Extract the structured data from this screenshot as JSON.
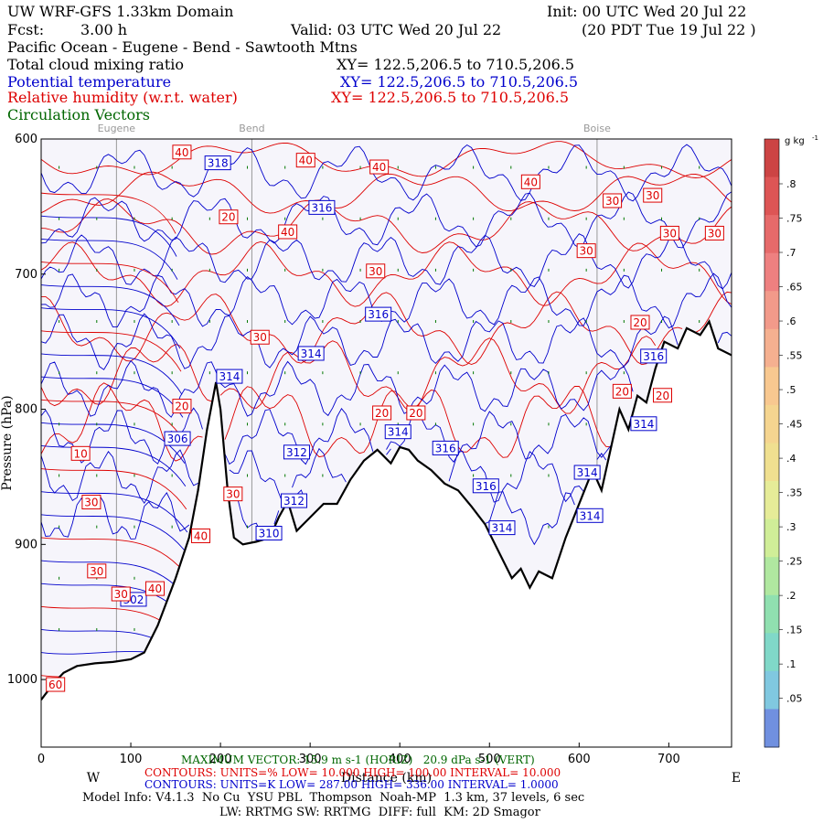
{
  "header": {
    "model_title": "UW WRF-GFS 1.33km Domain",
    "init": "Init: 00 UTC Wed 20 Jul 22",
    "fcst_label": "Fcst:",
    "fcst_value": "3.00 h",
    "valid": "Valid: 03 UTC Wed 20 Jul 22",
    "valid_local": "(20 PDT Tue 19 Jul 22 )",
    "cross_section": "Pacific Ocean - Eugene - Bend - Sawtooth Mtns",
    "field1": "Total cloud mixing ratio",
    "field1_xy": "XY= 122.5,206.5 to 710.5,206.5",
    "field2": "Potential temperature",
    "field2_xy": "XY= 122.5,206.5 to 710.5,206.5",
    "field3": "Relative humidity (w.r.t. water)",
    "field3_xy": "XY= 122.5,206.5 to 710.5,206.5",
    "field4": "Circulation Vectors"
  },
  "chart_data": {
    "type": "cross-section",
    "xlabel": "Distance (km)",
    "ylabel": "Pressure (hPa)",
    "xlim": [
      0,
      770
    ],
    "ylim_hpa": [
      1050,
      600
    ],
    "x_ticks": [
      "0",
      "100",
      "200",
      "300",
      "400",
      "500",
      "600",
      "700"
    ],
    "x_tick_values": [
      0,
      100,
      200,
      300,
      400,
      500,
      600,
      700
    ],
    "y_ticks": [
      "600",
      "700",
      "800",
      "900",
      "1000"
    ],
    "y_tick_values": [
      600,
      700,
      800,
      900,
      1000
    ],
    "locations": [
      {
        "name": "Eugene",
        "x": 84
      },
      {
        "name": "Bend",
        "x": 235
      },
      {
        "name": "Boise",
        "x": 620
      }
    ],
    "west_label": "W",
    "east_label": "E",
    "terrain": [
      {
        "x": 0,
        "p": 1015
      },
      {
        "x": 8,
        "p": 1008
      },
      {
        "x": 15,
        "p": 1002
      },
      {
        "x": 25,
        "p": 995
      },
      {
        "x": 40,
        "p": 990
      },
      {
        "x": 60,
        "p": 988
      },
      {
        "x": 80,
        "p": 987
      },
      {
        "x": 100,
        "p": 985
      },
      {
        "x": 115,
        "p": 980
      },
      {
        "x": 130,
        "p": 960
      },
      {
        "x": 150,
        "p": 925
      },
      {
        "x": 165,
        "p": 895
      },
      {
        "x": 175,
        "p": 860
      },
      {
        "x": 185,
        "p": 815
      },
      {
        "x": 195,
        "p": 780
      },
      {
        "x": 200,
        "p": 800
      },
      {
        "x": 208,
        "p": 860
      },
      {
        "x": 215,
        "p": 895
      },
      {
        "x": 225,
        "p": 900
      },
      {
        "x": 240,
        "p": 898
      },
      {
        "x": 255,
        "p": 895
      },
      {
        "x": 265,
        "p": 880
      },
      {
        "x": 275,
        "p": 868
      },
      {
        "x": 285,
        "p": 890
      },
      {
        "x": 300,
        "p": 880
      },
      {
        "x": 315,
        "p": 870
      },
      {
        "x": 330,
        "p": 870
      },
      {
        "x": 345,
        "p": 852
      },
      {
        "x": 360,
        "p": 838
      },
      {
        "x": 375,
        "p": 830
      },
      {
        "x": 390,
        "p": 840
      },
      {
        "x": 400,
        "p": 828
      },
      {
        "x": 410,
        "p": 830
      },
      {
        "x": 420,
        "p": 838
      },
      {
        "x": 435,
        "p": 845
      },
      {
        "x": 450,
        "p": 855
      },
      {
        "x": 465,
        "p": 860
      },
      {
        "x": 480,
        "p": 872
      },
      {
        "x": 495,
        "p": 885
      },
      {
        "x": 510,
        "p": 905
      },
      {
        "x": 525,
        "p": 925
      },
      {
        "x": 535,
        "p": 918
      },
      {
        "x": 545,
        "p": 932
      },
      {
        "x": 555,
        "p": 920
      },
      {
        "x": 570,
        "p": 925
      },
      {
        "x": 585,
        "p": 895
      },
      {
        "x": 600,
        "p": 870
      },
      {
        "x": 615,
        "p": 845
      },
      {
        "x": 625,
        "p": 860
      },
      {
        "x": 635,
        "p": 830
      },
      {
        "x": 645,
        "p": 800
      },
      {
        "x": 655,
        "p": 815
      },
      {
        "x": 665,
        "p": 790
      },
      {
        "x": 675,
        "p": 795
      },
      {
        "x": 685,
        "p": 770
      },
      {
        "x": 695,
        "p": 750
      },
      {
        "x": 710,
        "p": 755
      },
      {
        "x": 720,
        "p": 740
      },
      {
        "x": 735,
        "p": 745
      },
      {
        "x": 745,
        "p": 735
      },
      {
        "x": 755,
        "p": 755
      },
      {
        "x": 770,
        "p": 760
      }
    ],
    "theta_labels": [
      {
        "text": "318",
        "x": 197,
        "p": 618
      },
      {
        "text": "316",
        "x": 313,
        "p": 651
      },
      {
        "text": "316",
        "x": 376,
        "p": 730
      },
      {
        "text": "314",
        "x": 301,
        "p": 759
      },
      {
        "text": "314",
        "x": 210,
        "p": 776
      },
      {
        "text": "306",
        "x": 152,
        "p": 822
      },
      {
        "text": "314",
        "x": 398,
        "p": 817
      },
      {
        "text": "316",
        "x": 451,
        "p": 829
      },
      {
        "text": "312",
        "x": 285,
        "p": 832
      },
      {
        "text": "312",
        "x": 282,
        "p": 868
      },
      {
        "text": "316",
        "x": 496,
        "p": 857
      },
      {
        "text": "314",
        "x": 514,
        "p": 888
      },
      {
        "text": "310",
        "x": 254,
        "p": 892
      },
      {
        "text": "314",
        "x": 609,
        "p": 847
      },
      {
        "text": "314",
        "x": 612,
        "p": 879
      },
      {
        "text": "314",
        "x": 672,
        "p": 811
      },
      {
        "text": "316",
        "x": 683,
        "p": 761
      },
      {
        "text": "302",
        "x": 103,
        "p": 941
      }
    ],
    "rh_labels": [
      {
        "text": "40",
        "x": 157,
        "p": 610
      },
      {
        "text": "40",
        "x": 295,
        "p": 616
      },
      {
        "text": "40",
        "x": 377,
        "p": 621
      },
      {
        "text": "40",
        "x": 546,
        "p": 632
      },
      {
        "text": "30",
        "x": 637,
        "p": 646
      },
      {
        "text": "30",
        "x": 682,
        "p": 642
      },
      {
        "text": "20",
        "x": 209,
        "p": 658
      },
      {
        "text": "40",
        "x": 275,
        "p": 669
      },
      {
        "text": "30",
        "x": 608,
        "p": 683
      },
      {
        "text": "30",
        "x": 701,
        "p": 670
      },
      {
        "text": "30",
        "x": 751,
        "p": 670
      },
      {
        "text": "30",
        "x": 373,
        "p": 698
      },
      {
        "text": "20",
        "x": 668,
        "p": 736
      },
      {
        "text": "30",
        "x": 244,
        "p": 747
      },
      {
        "text": "20",
        "x": 648,
        "p": 787
      },
      {
        "text": "20",
        "x": 693,
        "p": 790
      },
      {
        "text": "20",
        "x": 157,
        "p": 798
      },
      {
        "text": "20",
        "x": 380,
        "p": 803
      },
      {
        "text": "20",
        "x": 418,
        "p": 803
      },
      {
        "text": "10",
        "x": 44,
        "p": 833
      },
      {
        "text": "30",
        "x": 214,
        "p": 863
      },
      {
        "text": "30",
        "x": 56,
        "p": 869
      },
      {
        "text": "40",
        "x": 178,
        "p": 894
      },
      {
        "text": "30",
        "x": 62,
        "p": 920
      },
      {
        "text": "30",
        "x": 89,
        "p": 937
      },
      {
        "text": "40",
        "x": 127,
        "p": 933
      },
      {
        "text": "60",
        "x": 16,
        "p": 1004
      }
    ],
    "colorbar": {
      "unit": "g kg",
      "unit_sup": "-1",
      "labels": [
        ".8",
        ".75",
        ".7",
        ".65",
        ".6",
        ".55",
        ".5",
        ".45",
        ".4",
        ".35",
        ".3",
        ".25",
        ".2",
        ".15",
        ".1",
        ".05"
      ],
      "colors": [
        "#cc4444",
        "#dd5555",
        "#e66a6a",
        "#ee8080",
        "#f29a8a",
        "#f5b090",
        "#f8c890",
        "#f5d590",
        "#f0e090",
        "#e6ec98",
        "#d0ee98",
        "#b0e8a0",
        "#90e0b0",
        "#80d8c8",
        "#80c8e0",
        "#7090e0"
      ]
    }
  },
  "footer": {
    "max_vector": "MAXIMUM VECTOR: 15.9 m s-1 (HORIZ)   20.9 dPa s-1 (VERT)",
    "contours_rh": "CONTOURS: UNITS=% LOW= 10.000 HIGH= 100.00 INTERVAL= 10.000",
    "contours_theta": "CONTOURS: UNITS=K LOW= 287.00 HIGH= 336.00 INTERVAL= 1.0000",
    "model_info": "Model Info: V4.1.3  No Cu  YSU PBL  Thompson  Noah-MP  1.3 km, 37 levels, 6 sec",
    "model_info2": "LW: RRTMG SW: RRTMG  DIFF: full  KM: 2D Smagor"
  },
  "colors": {
    "rh": "#dd0000",
    "theta": "#0000cc",
    "vectors": "#007700",
    "background": "#f6f5fb"
  }
}
